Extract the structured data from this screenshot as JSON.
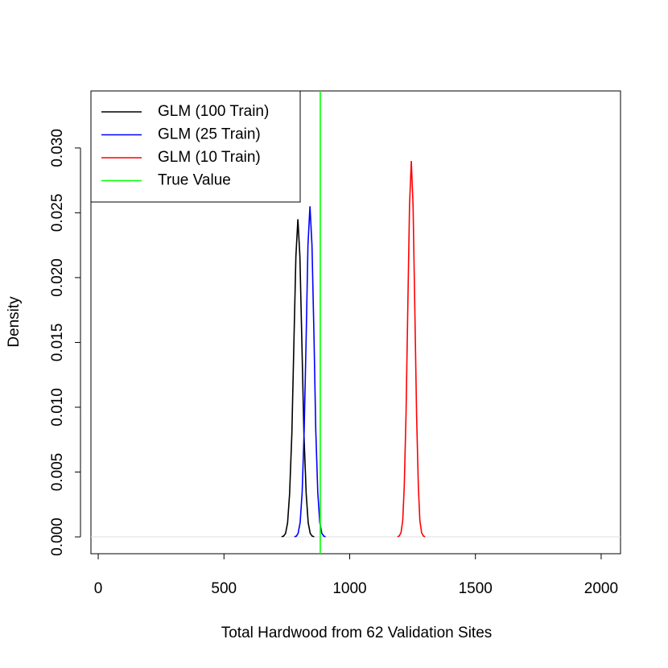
{
  "chart_data": {
    "type": "line",
    "x_label": "Total Hardwood from 62 Validation Sites",
    "y_label": "Density",
    "xlim": [
      -29,
      2077
    ],
    "ylim": [
      -0.0013,
      0.0344
    ],
    "xticks": [
      0,
      500,
      1000,
      1500,
      2000
    ],
    "yticks": [
      {
        "value": 0,
        "label": "0.000"
      },
      {
        "value": 0.005,
        "label": "0.005"
      },
      {
        "value": 0.01,
        "label": "0.010"
      },
      {
        "value": 0.015,
        "label": "0.015"
      },
      {
        "value": 0.02,
        "label": "0.020"
      },
      {
        "value": 0.025,
        "label": "0.025"
      },
      {
        "value": 0.03,
        "label": "0.030"
      }
    ],
    "legend": "topleft",
    "series": [
      {
        "name": "GLM (100 Train)",
        "color": "#000000",
        "x": [
          729,
          737,
          745,
          753,
          761,
          770,
          778,
          786,
          794,
          802,
          810,
          818,
          827,
          835,
          843,
          851,
          859
        ],
        "values": [
          1e-05,
          5.4e-05,
          0.00027,
          0.00108,
          0.00332,
          0.00796,
          0.01486,
          0.02162,
          0.0245,
          0.02162,
          0.01486,
          0.00796,
          0.00332,
          0.00108,
          0.00027,
          5.4e-05,
          1e-05
        ]
      },
      {
        "name": "GLM (25 Train)",
        "color": "#0000ff",
        "x": [
          780,
          788,
          795,
          803,
          811,
          819,
          827,
          834,
          842,
          850,
          858,
          865,
          873,
          881,
          889,
          897,
          904
        ],
        "values": [
          1e-05,
          5.6e-05,
          0.00028,
          0.00112,
          0.00345,
          0.00828,
          0.01547,
          0.0225,
          0.0255,
          0.0225,
          0.01547,
          0.00828,
          0.00345,
          0.00112,
          0.00028,
          5.6e-05,
          1e-05
        ]
      },
      {
        "name": "GLM (10 Train)",
        "color": "#ff0000",
        "x": [
          1190,
          1197,
          1204,
          1211,
          1217,
          1224,
          1231,
          1238,
          1245,
          1252,
          1259,
          1266,
          1273,
          1279,
          1286,
          1293,
          1300
        ],
        "values": [
          1e-05,
          6.4e-05,
          0.00032,
          0.00127,
          0.00392,
          0.00942,
          0.01759,
          0.02559,
          0.029,
          0.02559,
          0.01759,
          0.00942,
          0.00392,
          0.00127,
          0.00032,
          6.4e-05,
          1e-05
        ]
      }
    ],
    "vlines": [
      {
        "name": "True Value",
        "color": "#00ff00",
        "x": 883
      }
    ],
    "hline_color": "#dddddd"
  }
}
